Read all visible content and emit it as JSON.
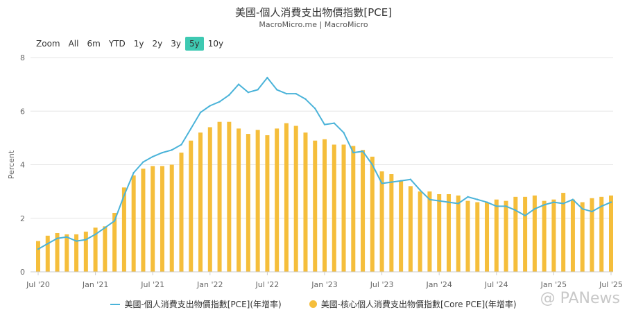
{
  "header": {
    "title": "美國-個人消費支出物價指數[PCE]",
    "subtitle": "MacroMicro.me | MacroMicro"
  },
  "zoom": {
    "buttons": [
      "Zoom",
      "All",
      "6m",
      "YTD",
      "1y",
      "2y",
      "3y",
      "5y",
      "10y"
    ],
    "active": "5y",
    "active_color": "#3ec9b2"
  },
  "watermark": {
    "text": "@ PANews"
  },
  "chart_data": {
    "type": "bar",
    "ylabel": "Percent",
    "ylim": [
      0,
      8
    ],
    "yticks": [
      0,
      2,
      4,
      6,
      8
    ],
    "grid": true,
    "legend_position": "bottom",
    "x_tick_labels": [
      "Jul '20",
      "Jan '21",
      "Jul '21",
      "Jan '22",
      "Jul '22",
      "Jan '23",
      "Jul '23",
      "Jan '24",
      "Jul '24",
      "Jan '25",
      "Jul '25"
    ],
    "x_tick_indices": [
      0,
      6,
      12,
      18,
      24,
      30,
      36,
      42,
      48,
      54,
      60
    ],
    "months": [
      "2020-07",
      "2020-08",
      "2020-09",
      "2020-10",
      "2020-11",
      "2020-12",
      "2021-01",
      "2021-02",
      "2021-03",
      "2021-04",
      "2021-05",
      "2021-06",
      "2021-07",
      "2021-08",
      "2021-09",
      "2021-10",
      "2021-11",
      "2021-12",
      "2022-01",
      "2022-02",
      "2022-03",
      "2022-04",
      "2022-05",
      "2022-06",
      "2022-07",
      "2022-08",
      "2022-09",
      "2022-10",
      "2022-11",
      "2022-12",
      "2023-01",
      "2023-02",
      "2023-03",
      "2023-04",
      "2023-05",
      "2023-06",
      "2023-07",
      "2023-08",
      "2023-09",
      "2023-10",
      "2023-11",
      "2023-12",
      "2024-01",
      "2024-02",
      "2024-03",
      "2024-04",
      "2024-05",
      "2024-06",
      "2024-07",
      "2024-08",
      "2024-09",
      "2024-10",
      "2024-11",
      "2024-12",
      "2025-01",
      "2025-02",
      "2025-03",
      "2025-04",
      "2025-05",
      "2025-06",
      "2025-07"
    ],
    "series": [
      {
        "name": "美國-個人消費支出物價指數[PCE](年增率)",
        "type": "line",
        "color": "#4ab3d9",
        "values": [
          0.85,
          1.05,
          1.25,
          1.3,
          1.15,
          1.2,
          1.4,
          1.65,
          1.9,
          2.85,
          3.7,
          4.1,
          4.3,
          4.45,
          4.55,
          4.75,
          5.35,
          5.95,
          6.2,
          6.35,
          6.6,
          7.0,
          6.7,
          6.8,
          7.25,
          6.8,
          6.65,
          6.65,
          6.45,
          6.1,
          5.5,
          5.55,
          5.2,
          4.45,
          4.5,
          4.0,
          3.3,
          3.35,
          3.4,
          3.45,
          3.05,
          2.7,
          2.65,
          2.6,
          2.55,
          2.8,
          2.7,
          2.6,
          2.45,
          2.45,
          2.3,
          2.1,
          2.35,
          2.5,
          2.6,
          2.55,
          2.7,
          2.35,
          2.25,
          2.45,
          2.6
        ]
      },
      {
        "name": "美國-核心個人消費支出物價指數[Core PCE](年增率)",
        "type": "bar",
        "color": "#f5be3b",
        "values": [
          1.15,
          1.35,
          1.45,
          1.4,
          1.4,
          1.5,
          1.65,
          1.7,
          2.2,
          3.15,
          3.6,
          3.85,
          3.95,
          3.95,
          4.0,
          4.45,
          4.9,
          5.2,
          5.4,
          5.6,
          5.6,
          5.35,
          5.15,
          5.3,
          5.1,
          5.35,
          5.55,
          5.45,
          5.2,
          4.9,
          4.95,
          4.75,
          4.75,
          4.7,
          4.55,
          4.3,
          3.75,
          3.65,
          3.4,
          3.2,
          3.0,
          3.0,
          2.9,
          2.9,
          2.85,
          2.65,
          2.6,
          2.6,
          2.7,
          2.65,
          2.8,
          2.8,
          2.85,
          2.65,
          2.7,
          2.95,
          2.7,
          2.6,
          2.75,
          2.8,
          2.85
        ]
      }
    ]
  }
}
